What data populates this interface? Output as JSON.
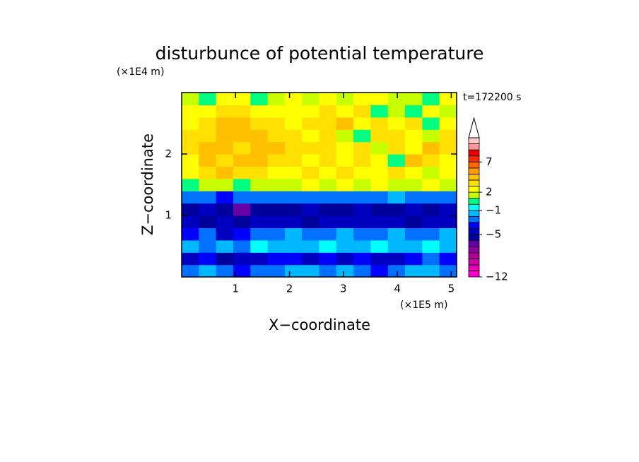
{
  "chart_data": {
    "type": "contour",
    "title": "disturbunce of potential temperature",
    "y_unit": "(×1E4 m)",
    "x_unit": "(×1E5 m)",
    "time_label": "t=172200 s",
    "xlabel": "X−coordinate",
    "ylabel": "Z−coordinate",
    "xlim": [
      0,
      5.1
    ],
    "ylim": [
      0,
      3
    ],
    "xticks": [
      1,
      2,
      3,
      4,
      5
    ],
    "yticks": [
      1,
      2
    ],
    "values": [
      [
        -3,
        -2,
        -3,
        -4,
        -3,
        -3,
        -2,
        -2,
        -3,
        -2,
        -3,
        -4,
        -3,
        -2,
        -2,
        -3
      ],
      [
        -5,
        -4,
        -6,
        -5,
        -5,
        -4,
        -4,
        -5,
        -4,
        -5,
        -4,
        -5,
        -5,
        -4,
        -3,
        -4
      ],
      [
        -2,
        -3,
        -2,
        -3,
        -1,
        -2,
        -2,
        -2,
        -1,
        -2,
        -2,
        -1,
        -2,
        -2,
        -1,
        -2
      ],
      [
        -4,
        -3,
        -5,
        -4,
        -3,
        -3,
        -2,
        -3,
        -3,
        -2,
        -3,
        -3,
        -2,
        -3,
        -3,
        -2
      ],
      [
        -5,
        -6,
        -5,
        -6,
        -5,
        -5,
        -5,
        -6,
        -5,
        -5,
        -5,
        -5,
        -5,
        -6,
        -5,
        -5
      ],
      [
        -6,
        -5,
        -6,
        -7,
        -6,
        -6,
        -6,
        -5,
        -6,
        -6,
        -5,
        -6,
        -6,
        -5,
        -6,
        -5
      ],
      [
        -3,
        -3,
        -4,
        -3,
        -3,
        -3,
        -3,
        -3,
        -3,
        -3,
        -3,
        -3,
        -2,
        -3,
        -3,
        -3
      ],
      [
        0,
        1,
        1,
        0,
        1,
        1,
        1,
        2,
        1,
        2,
        1,
        2,
        1,
        1,
        2,
        1
      ],
      [
        2,
        3,
        4,
        3,
        3,
        2,
        2,
        3,
        2,
        3,
        2,
        2,
        3,
        2,
        1,
        2
      ],
      [
        2,
        4,
        3,
        4,
        4,
        3,
        3,
        2,
        3,
        2,
        3,
        2,
        0,
        4,
        3,
        2
      ],
      [
        3,
        4,
        4,
        3,
        4,
        4,
        3,
        3,
        3,
        2,
        3,
        1,
        3,
        2,
        4,
        3
      ],
      [
        3,
        3,
        4,
        4,
        4,
        3,
        3,
        2,
        3,
        1,
        0,
        3,
        3,
        2,
        1,
        3
      ],
      [
        2,
        3,
        4,
        4,
        3,
        3,
        2,
        3,
        3,
        4,
        2,
        3,
        2,
        3,
        0,
        2
      ],
      [
        2,
        2,
        3,
        3,
        2,
        2,
        2,
        2,
        3,
        2,
        3,
        0,
        1,
        0,
        2,
        1
      ],
      [
        1,
        0,
        2,
        2,
        0,
        1,
        2,
        1,
        2,
        1,
        2,
        2,
        1,
        1,
        0,
        2
      ]
    ],
    "colorbar": {
      "levels": [
        -12,
        -11,
        -10,
        -9,
        -8,
        -7,
        -6,
        -5,
        -4,
        -3,
        -2,
        -1,
        0,
        1,
        2,
        3,
        4,
        5,
        6,
        7,
        8,
        9,
        10,
        11
      ],
      "colors": [
        "#ff00c8",
        "#e800b8",
        "#d000a8",
        "#b00098",
        "#9000a0",
        "#6800a8",
        "#00009a",
        "#0000c0",
        "#0000ff",
        "#0070ff",
        "#00b8ff",
        "#00ffff",
        "#00ff80",
        "#c8ff00",
        "#ffff00",
        "#ffe000",
        "#ffc000",
        "#ff9a00",
        "#ff6a00",
        "#ff2800",
        "#e80000",
        "#ff9898",
        "#ffc8c8"
      ],
      "ticks": [
        {
          "value": -12,
          "label": "−12"
        },
        {
          "value": -5,
          "label": "−5"
        },
        {
          "value": -1,
          "label": "−1"
        },
        2,
        7
      ]
    }
  }
}
